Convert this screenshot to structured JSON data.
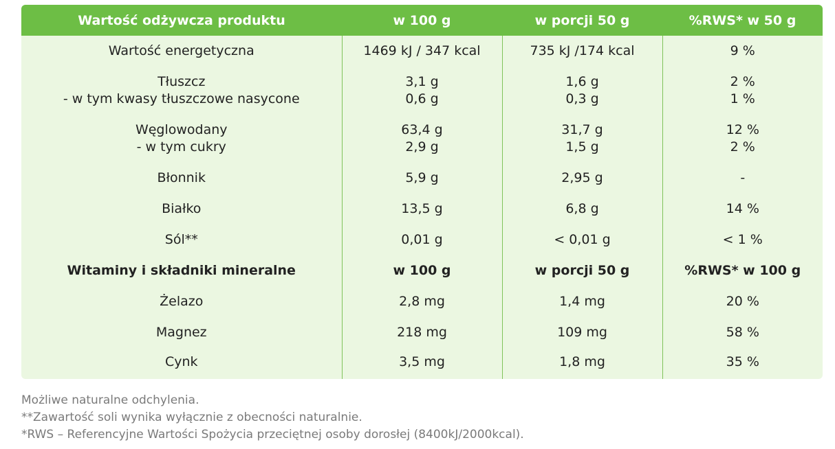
{
  "header": {
    "col1": "Wartość odżywcza produktu",
    "col2": "w 100 g",
    "col3": "w porcji 50 g",
    "col4": "%RWS* w 50 g"
  },
  "rows": [
    {
      "label": "Wartość energetyczna",
      "per100": "1469 kJ / 347 kcal",
      "portion": "735 kJ /174 kcal",
      "rws": "9 %"
    },
    {
      "label": "Tłuszcz",
      "label2": "- w tym kwasy tłuszczowe nasycone",
      "per100": "3,1 g",
      "per100_2": "0,6 g",
      "portion": "1,6 g",
      "portion_2": "0,3 g",
      "rws": "2 %",
      "rws_2": "1 %"
    },
    {
      "label": "Węglowodany",
      "label2": "- w tym cukry",
      "per100": "63,4 g",
      "per100_2": "2,9 g",
      "portion": "31,7 g",
      "portion_2": "1,5 g",
      "rws": "12 %",
      "rws_2": "2 %"
    },
    {
      "label": "Błonnik",
      "per100": "5,9 g",
      "portion": "2,95 g",
      "rws": "-"
    },
    {
      "label": "Białko",
      "per100": "13,5 g",
      "portion": "6,8 g",
      "rws": "14 %"
    },
    {
      "label": "Sól**",
      "per100": "0,01 g",
      "portion": "< 0,01 g",
      "rws": "< 1 %"
    }
  ],
  "vitamins_header": {
    "col1": "Witaminy i składniki mineralne",
    "col2": "w 100 g",
    "col3": "w porcji 50 g",
    "col4": "%RWS* w 100 g"
  },
  "vitamins": [
    {
      "label": "Żelazo",
      "per100": "2,8 mg",
      "portion": "1,4 mg",
      "rws": "20 %"
    },
    {
      "label": "Magnez",
      "per100": "218 mg",
      "portion": "109 mg",
      "rws": "58 %"
    },
    {
      "label": "Cynk",
      "per100": "3,5 mg",
      "portion": "1,8 mg",
      "rws": "35 %"
    }
  ],
  "footnotes": [
    "Możliwe naturalne odchylenia.",
    "**Zawartość soli wynika wyłącznie z obecności naturalnie.",
    "*RWS – Referencyjne Wartości Spożycia przeciętnej osoby dorosłej (8400kJ/2000kcal)."
  ],
  "colors": {
    "header_bg": "#6dbe45",
    "body_bg": "#ebf7e1",
    "divider": "#7fc35a",
    "footnote_text": "#7a7a7a"
  }
}
